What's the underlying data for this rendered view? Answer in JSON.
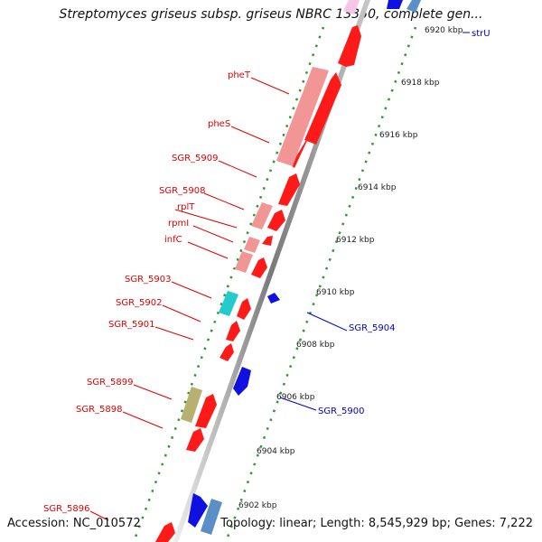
{
  "title": "Streptomyces griseus subsp. griseus NBRC 13350, complete gen...",
  "footer": {
    "accession": "Accession: NC_010572",
    "summary": "Topology: linear; Length: 8,545,929 bp; Genes: 7,222"
  },
  "colors": {
    "gene_red": "#ff1a1a",
    "gene_pink": "#f29595",
    "gene_blue": "#1010e0",
    "gene_steel": "#5b8fc8",
    "gene_cyan": "#22cccc",
    "gene_olive": "#b8b070",
    "axis": "#8c8c8c",
    "dots": "#2e9a2e",
    "label_red": "#e00000",
    "label_blue": "#0000cc"
  },
  "ticks": [
    "6920 kbp",
    "6918 kbp",
    "6916 kbp",
    "6914 kbp",
    "6912 kbp",
    "6910 kbp",
    "6908 kbp",
    "6906 kbp",
    "6904 kbp",
    "6902 kbp"
  ],
  "left_labels": [
    "pheT",
    "pheS",
    "SGR_5909",
    "SGR_5908",
    "rplT",
    "rpmI",
    "infC",
    "SGR_5903",
    "SGR_5902",
    "SGR_5901",
    "SGR_5899",
    "SGR_5898",
    "SGR_5896"
  ],
  "right_labels": [
    "strU",
    "SGR_5904",
    "SGR_5900"
  ]
}
